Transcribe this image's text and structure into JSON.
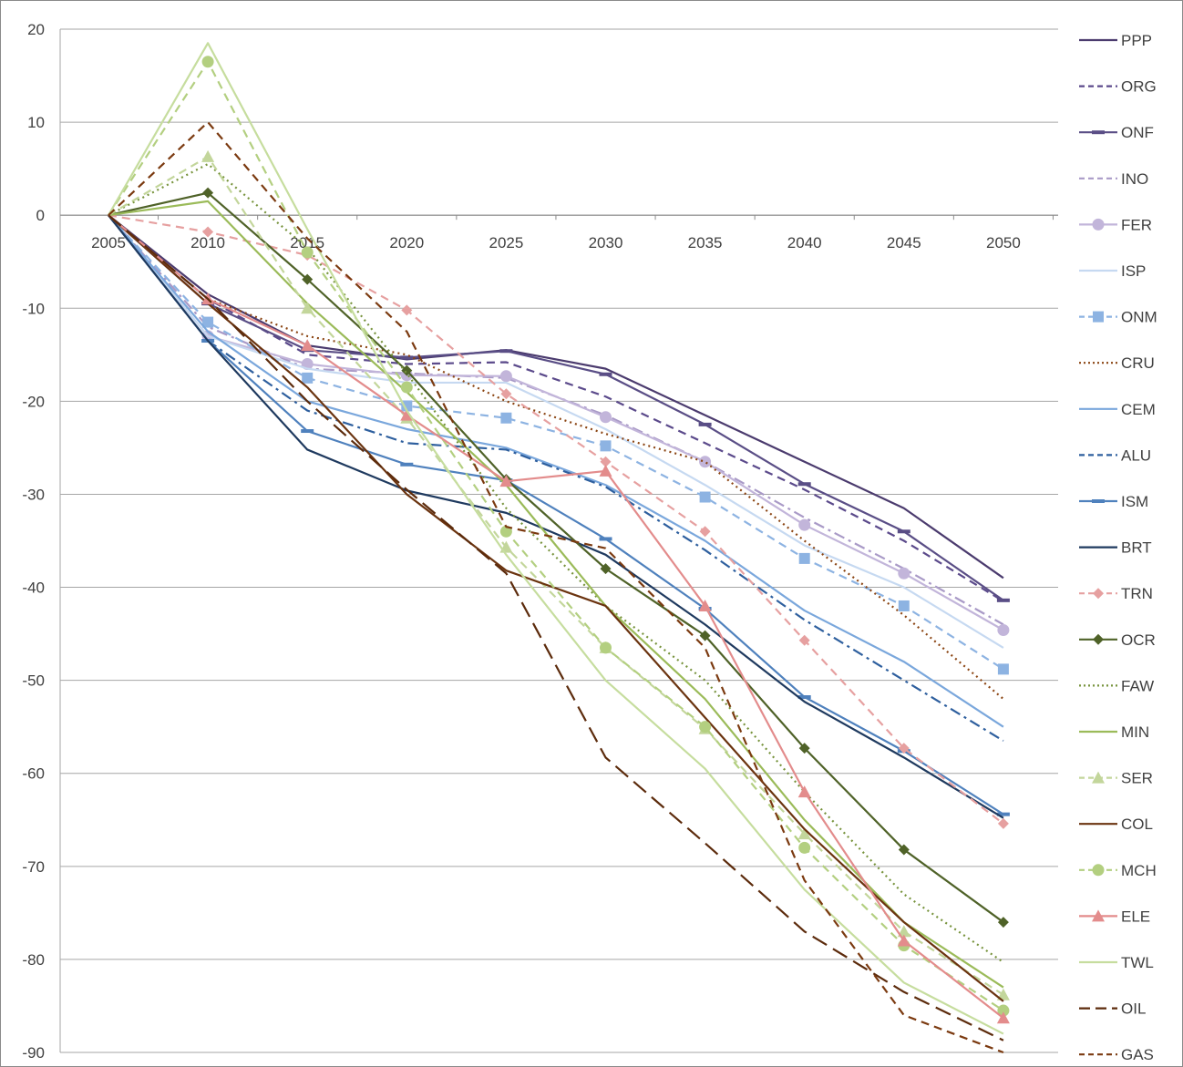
{
  "chart_data": {
    "type": "line",
    "title": "",
    "xlabel": "",
    "ylabel": "",
    "x": [
      "2005",
      "2010",
      "2015",
      "2020",
      "2025",
      "2030",
      "2035",
      "2040",
      "2045",
      "2050"
    ],
    "ylim": [
      -90,
      20
    ],
    "yticks": [
      20,
      10,
      0,
      -10,
      -20,
      -30,
      -40,
      -50,
      -60,
      -70,
      -80,
      -90
    ],
    "grid": "horizontal",
    "legend_position": "right",
    "series": [
      {
        "name": "PPP",
        "color": "#4b3b6e",
        "dash": "solid",
        "marker": "none",
        "values": [
          0,
          -8.5,
          -14,
          -15.5,
          -14.5,
          -16.5,
          -21.5,
          -26.5,
          -31.5,
          -39
        ]
      },
      {
        "name": "ORG",
        "color": "#5b4a8b",
        "dash": "dash",
        "marker": "none",
        "values": [
          0,
          -9,
          -15,
          -16,
          -15.8,
          -19.5,
          -24.5,
          -29.5,
          -35,
          -41.5
        ]
      },
      {
        "name": "ONF",
        "color": "#5a4e86",
        "dash": "solid",
        "marker": "bar",
        "values": [
          0,
          -9.5,
          -14.5,
          -15.3,
          -14.6,
          -17.1,
          -22.5,
          -28.9,
          -34,
          -41.4
        ]
      },
      {
        "name": "INO",
        "color": "#a99ac7",
        "dash": "dashdot",
        "marker": "none",
        "values": [
          0,
          -12,
          -16.5,
          -17,
          -17.5,
          -21.5,
          -26.5,
          -32.5,
          -38,
          -44
        ]
      },
      {
        "name": "FER",
        "color": "#c2b5da",
        "dash": "solid",
        "marker": "circle",
        "values": [
          0,
          -13,
          -16,
          -17.2,
          -17.3,
          -21.7,
          -26.5,
          -33.3,
          -38.5,
          -44.6
        ]
      },
      {
        "name": "ISP",
        "color": "#c6d9f1",
        "dash": "solid",
        "marker": "none",
        "values": [
          0,
          -13,
          -16.5,
          -18,
          -18,
          -23,
          -29,
          -35.5,
          -40,
          -46.5
        ]
      },
      {
        "name": "ONM",
        "color": "#8db3e2",
        "dash": "dash",
        "marker": "square",
        "values": [
          0,
          -11.5,
          -17.5,
          -20.5,
          -21.8,
          -24.8,
          -30.3,
          -36.9,
          -42,
          -48.8
        ]
      },
      {
        "name": "CRU",
        "color": "#8b4513",
        "dash": "dot",
        "marker": "none",
        "values": [
          0,
          -9,
          -13,
          -15,
          -20,
          -23.5,
          -26.5,
          -35,
          -43,
          -52
        ]
      },
      {
        "name": "CEM",
        "color": "#7aa7dc",
        "dash": "solid",
        "marker": "none",
        "values": [
          0,
          -12.5,
          -20,
          -23,
          -25,
          -29,
          -35,
          -42.5,
          -48,
          -55
        ]
      },
      {
        "name": "ALU",
        "color": "#2e5f9e",
        "dash": "dashdot",
        "marker": "none",
        "values": [
          0,
          -13.5,
          -21,
          -24.5,
          -25.2,
          -29.2,
          -36,
          -43.5,
          -50,
          -56.5
        ]
      },
      {
        "name": "ISM",
        "color": "#4f81bd",
        "dash": "solid",
        "marker": "bar",
        "values": [
          0,
          -13.5,
          -23.2,
          -26.8,
          -28.5,
          -34.8,
          -42.3,
          -51.8,
          -57.6,
          -64.4
        ]
      },
      {
        "name": "BRT",
        "color": "#1f3a5f",
        "dash": "solid",
        "marker": "none",
        "values": [
          0,
          -13.5,
          -25.2,
          -29.6,
          -32,
          -36.5,
          -44,
          -52.3,
          -58.3,
          -64.8
        ]
      },
      {
        "name": "TRN",
        "color": "#e6a0a0",
        "dash": "dash",
        "marker": "diamond",
        "values": [
          0,
          -1.8,
          -4.3,
          -10.2,
          -19.2,
          -26.5,
          -34,
          -45.7,
          -57.3,
          -65.4
        ]
      },
      {
        "name": "OCR",
        "color": "#4f6228",
        "dash": "solid",
        "marker": "diamond",
        "values": [
          0,
          2.4,
          -6.9,
          -16.7,
          -28.4,
          -38,
          -45.2,
          -57.3,
          -68.2,
          -76
        ]
      },
      {
        "name": "FAW",
        "color": "#77933c",
        "dash": "dot",
        "marker": "none",
        "values": [
          0,
          5.5,
          -3.5,
          -17,
          -31.5,
          -42,
          -50,
          -62,
          -73,
          -80.3
        ]
      },
      {
        "name": "MIN",
        "color": "#9bbb59",
        "dash": "solid",
        "marker": "none",
        "values": [
          0,
          1.5,
          -9.5,
          -19,
          -29,
          -42,
          -52,
          -65,
          -76,
          -83
        ]
      },
      {
        "name": "SER",
        "color": "#c3d69b",
        "dash": "dash",
        "marker": "triangle",
        "values": [
          0,
          6.3,
          -10,
          -21.8,
          -35.7,
          -46.5,
          -55.2,
          -66.5,
          -77,
          -83.8
        ]
      },
      {
        "name": "COL",
        "color": "#6b3410",
        "dash": "solid",
        "marker": "none",
        "values": [
          0,
          -9.5,
          -18.5,
          -30,
          -38.2,
          -42,
          -54,
          -66,
          -76,
          -84.5
        ]
      },
      {
        "name": "MCH",
        "color": "#b3cf80",
        "dash": "dash",
        "marker": "circle",
        "values": [
          0,
          16.5,
          -4,
          -18.5,
          -34,
          -46.5,
          -55,
          -68,
          -78.5,
          -85.5
        ]
      },
      {
        "name": "ELE",
        "color": "#e38c8c",
        "dash": "solid",
        "marker": "triangle",
        "values": [
          0,
          -9,
          -14,
          -21.5,
          -28.6,
          -27.5,
          -42,
          -62,
          -78,
          -86.3
        ]
      },
      {
        "name": "TWL",
        "color": "#c6dd9e",
        "dash": "solid",
        "marker": "none",
        "values": [
          0,
          18.5,
          -1.5,
          -21,
          -36.5,
          -50,
          -59.5,
          -72.5,
          -82.5,
          -88
        ]
      },
      {
        "name": "OIL",
        "color": "#5c2b0c",
        "dash": "longdash",
        "marker": "none",
        "values": [
          0,
          -9,
          -20,
          -29.5,
          -38.5,
          -58.3,
          -67.5,
          -77,
          -83.5,
          -88.7
        ]
      },
      {
        "name": "GAS",
        "color": "#7b3a10",
        "dash": "dash",
        "marker": "none",
        "values": [
          0,
          10,
          -2.5,
          -12.5,
          -33.5,
          -35.8,
          -46.5,
          -71.5,
          -86,
          -90
        ]
      }
    ]
  }
}
